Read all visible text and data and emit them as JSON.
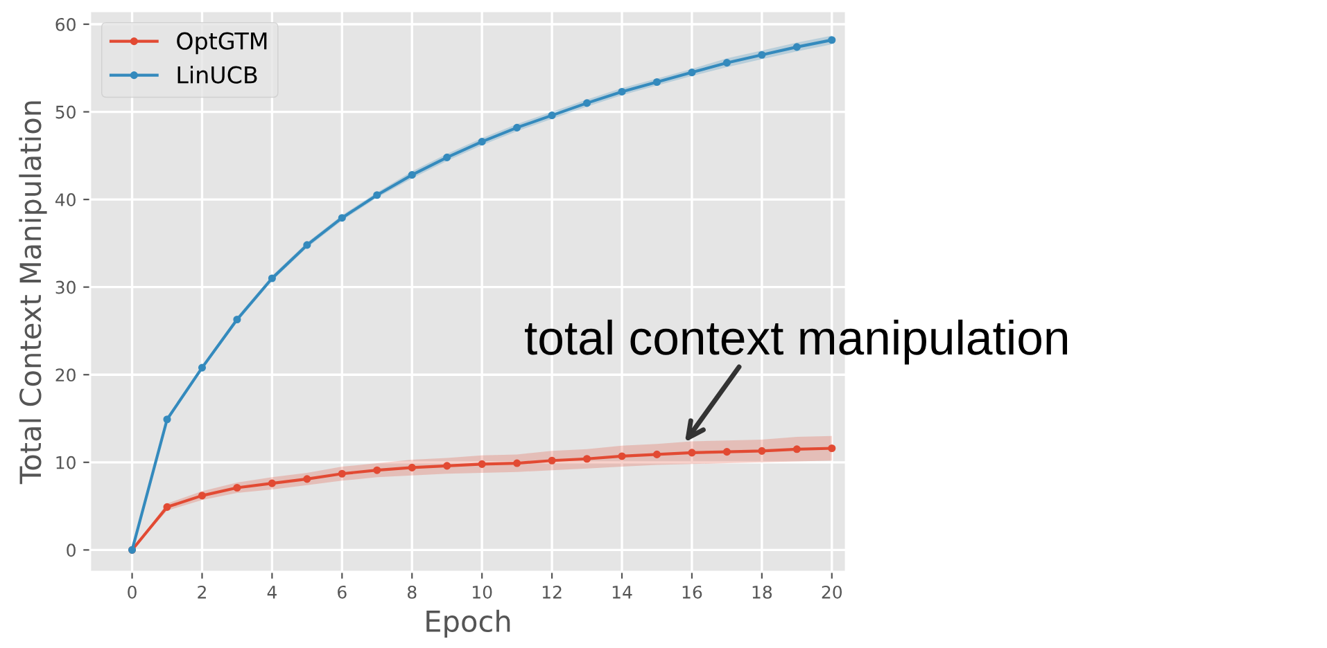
{
  "chart_data": {
    "type": "line",
    "xlabel": "Epoch",
    "ylabel": "Total Context Manipulation",
    "x": [
      0,
      1,
      2,
      3,
      4,
      5,
      6,
      7,
      8,
      9,
      10,
      11,
      12,
      13,
      14,
      15,
      16,
      17,
      18,
      19,
      20
    ],
    "series": [
      {
        "name": "OptGTM",
        "color": "#e24a33",
        "values": [
          0,
          4.9,
          6.2,
          7.1,
          7.6,
          8.1,
          8.7,
          9.1,
          9.4,
          9.6,
          9.8,
          9.9,
          10.2,
          10.4,
          10.7,
          10.9,
          11.1,
          11.2,
          11.3,
          11.5,
          11.6
        ],
        "lower": [
          0,
          4.5,
          5.7,
          6.5,
          6.9,
          7.4,
          7.9,
          8.3,
          8.5,
          8.7,
          8.8,
          8.9,
          9.1,
          9.3,
          9.5,
          9.7,
          9.8,
          9.9,
          10.0,
          10.1,
          10.2
        ],
        "upper": [
          0,
          5.3,
          6.7,
          7.7,
          8.3,
          8.8,
          9.5,
          9.9,
          10.3,
          10.5,
          10.8,
          10.9,
          11.3,
          11.5,
          11.9,
          12.1,
          12.4,
          12.5,
          12.6,
          12.9,
          13.0
        ]
      },
      {
        "name": "LinUCB",
        "color": "#348abd",
        "values": [
          0,
          14.9,
          20.8,
          26.3,
          31.0,
          34.8,
          37.9,
          40.5,
          42.8,
          44.8,
          46.6,
          48.2,
          49.6,
          51.0,
          52.3,
          53.4,
          54.5,
          55.6,
          56.5,
          57.4,
          58.2
        ],
        "lower": [
          0,
          14.7,
          20.6,
          26.0,
          30.7,
          34.5,
          37.6,
          40.2,
          42.4,
          44.4,
          46.2,
          47.8,
          49.2,
          50.6,
          51.9,
          53.0,
          54.1,
          55.1,
          56.0,
          56.9,
          57.7
        ],
        "upper": [
          0,
          15.1,
          21.0,
          26.6,
          31.3,
          35.1,
          38.2,
          40.8,
          43.2,
          45.2,
          47.0,
          48.6,
          50.0,
          51.4,
          52.7,
          53.8,
          54.9,
          56.1,
          57.0,
          57.9,
          58.7
        ]
      }
    ],
    "xlim": [
      -1.2,
      20.4
    ],
    "ylim": [
      -2.5,
      61.5
    ],
    "xticks": [
      0,
      2,
      4,
      6,
      8,
      10,
      12,
      14,
      16,
      18,
      20
    ],
    "yticks": [
      0,
      10,
      20,
      30,
      40,
      50,
      60
    ],
    "grid": true,
    "legend": "top left",
    "marker": "circle",
    "line_style": "solid",
    "annotations": [
      {
        "text": "total context manipulation",
        "x": 15.8,
        "y": 12.3
      }
    ]
  }
}
